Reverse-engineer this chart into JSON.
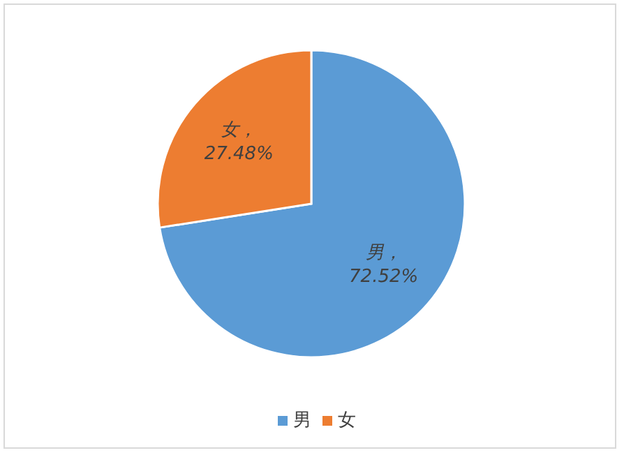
{
  "chart_data": {
    "type": "pie",
    "categories": [
      "男",
      "女"
    ],
    "values": [
      72.52,
      27.48
    ],
    "colors": [
      "#5b9bd5",
      "#ed7d31"
    ],
    "value_labels": [
      "男，72.52%",
      "女，27.48%"
    ],
    "legend": "bottom"
  }
}
